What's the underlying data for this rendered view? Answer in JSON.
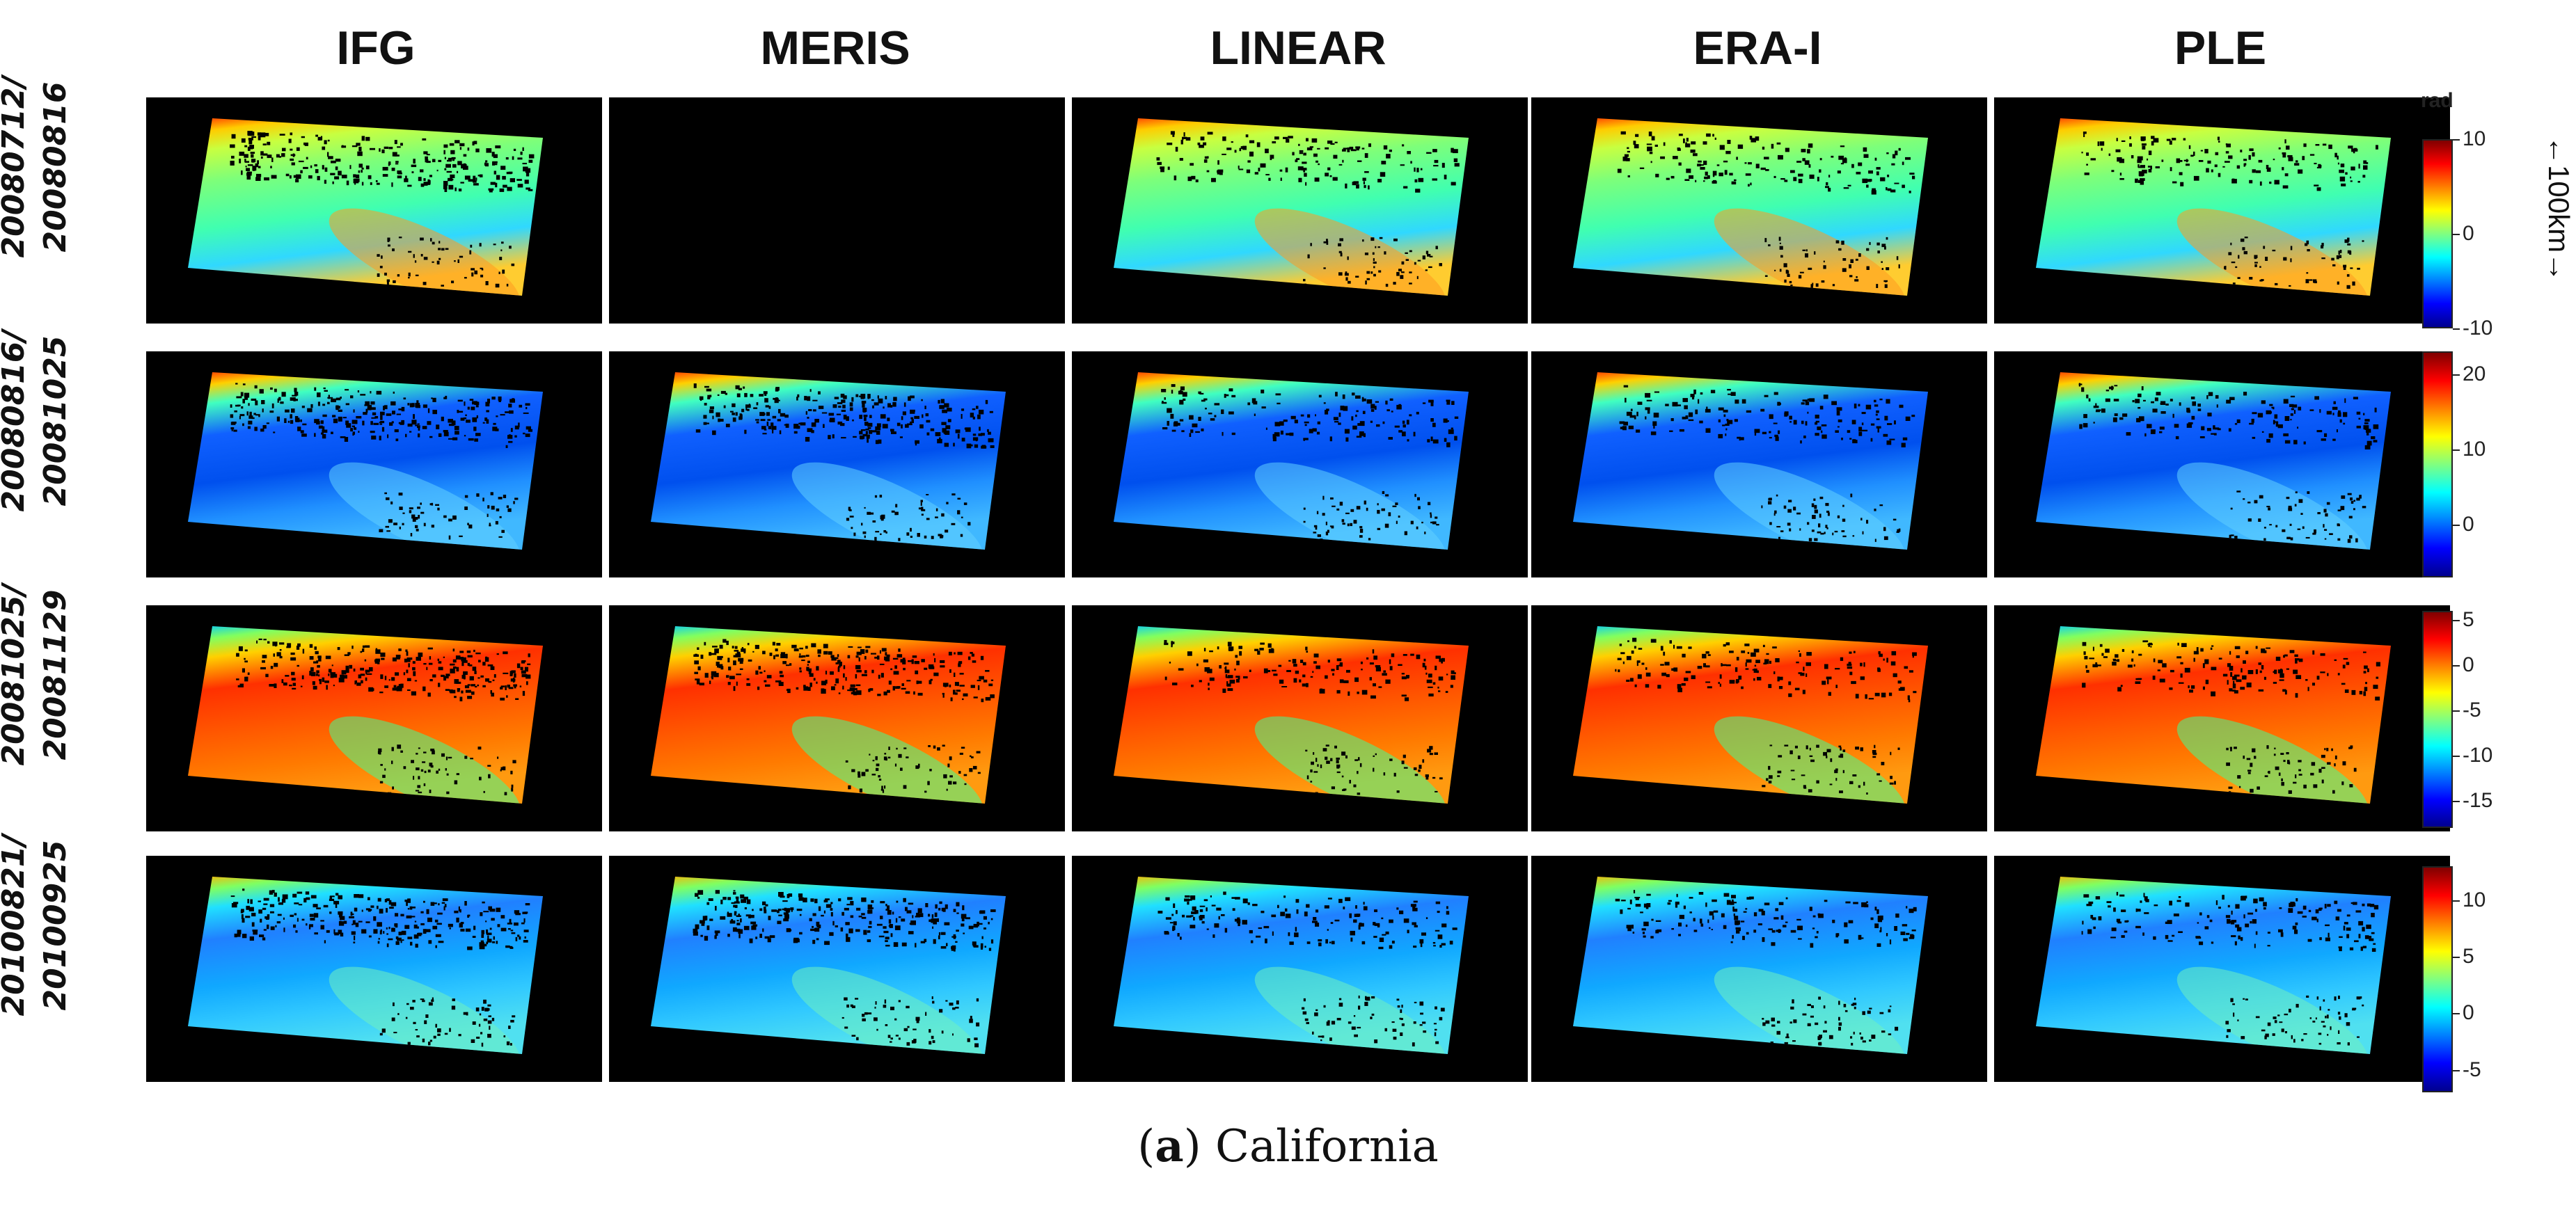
{
  "column_headers": [
    "IFG",
    "MERIS",
    "LINEAR",
    "ERA-I",
    "PLE"
  ],
  "row_labels": [
    {
      "line1": "20080712/",
      "line2": "20080816"
    },
    {
      "line1": "20080816/",
      "line2": "20081025"
    },
    {
      "line1": "20081025/",
      "line2": "20081129"
    },
    {
      "line1": "20100821/",
      "line2": "20100925"
    }
  ],
  "colorbars": [
    {
      "unit": "rad",
      "ticks": [
        "10",
        "0",
        "-10"
      ],
      "tick_values": [
        10,
        0,
        -10
      ],
      "min": -10,
      "max": 10
    },
    {
      "unit": "",
      "ticks": [
        "20",
        "10",
        "0"
      ],
      "tick_values": [
        20,
        10,
        0
      ],
      "min": -7,
      "max": 23
    },
    {
      "unit": "",
      "ticks": [
        "5",
        "0",
        "-5",
        "-10",
        "-15"
      ],
      "tick_values": [
        5,
        0,
        -5,
        -10,
        -15
      ],
      "min": -18,
      "max": 6
    },
    {
      "unit": "",
      "ticks": [
        "10",
        "5",
        "0",
        "-5"
      ],
      "tick_values": [
        10,
        5,
        0,
        -5
      ],
      "min": -7,
      "max": 13
    }
  ],
  "scale_bar": "←100km→",
  "caption": {
    "letter": "a",
    "text": "California"
  },
  "panels_empty": [
    [
      0,
      1
    ]
  ],
  "colormap": "jet",
  "row_themes": [
    "cyan-green-red-top",
    "blue-red-top",
    "red-orange",
    "blue-cyan"
  ]
}
